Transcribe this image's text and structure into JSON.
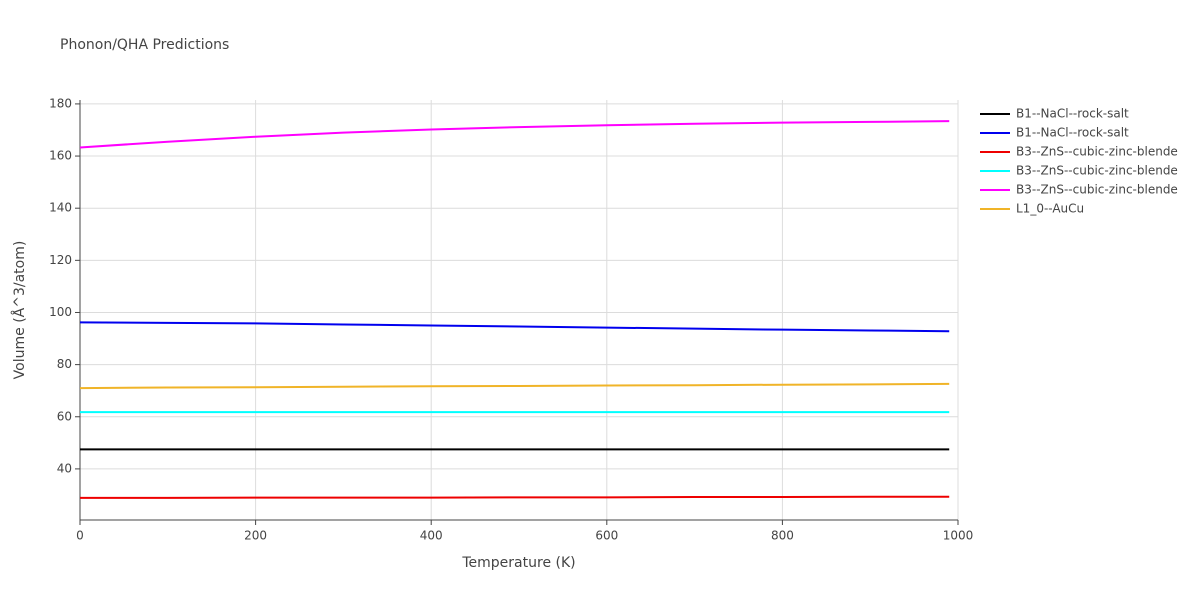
{
  "chart_data": {
    "type": "line",
    "title": "Phonon/QHA Predictions",
    "x_label": "Temperature (K)",
    "y_label": "Volume (Å^3/atom)",
    "x": [
      0,
      100,
      200,
      300,
      400,
      500,
      600,
      700,
      800,
      900,
      990
    ],
    "series": [
      {
        "name": "B1--NaCl--rock-salt",
        "color": "#000000",
        "values": [
          47.5,
          47.5,
          47.5,
          47.5,
          47.5,
          47.5,
          47.5,
          47.5,
          47.5,
          47.5,
          47.5
        ]
      },
      {
        "name": "B1--NaCl--rock-salt",
        "color": "#0000ee",
        "values": [
          96.2,
          96.0,
          95.8,
          95.4,
          95.0,
          94.6,
          94.2,
          93.8,
          93.4,
          93.1,
          92.8
        ]
      },
      {
        "name": "B3--ZnS--cubic-zinc-blende",
        "color": "#ee0000",
        "values": [
          28.9,
          28.9,
          29.0,
          29.0,
          29.0,
          29.1,
          29.1,
          29.2,
          29.2,
          29.3,
          29.3
        ]
      },
      {
        "name": "B3--ZnS--cubic-zinc-blende",
        "color": "#00ffff",
        "values": [
          61.8,
          61.8,
          61.8,
          61.8,
          61.8,
          61.8,
          61.8,
          61.8,
          61.8,
          61.8,
          61.8
        ]
      },
      {
        "name": "B3--ZnS--cubic-zinc-blende",
        "color": "#ff00ff",
        "values": [
          163.3,
          165.5,
          167.4,
          169.0,
          170.2,
          171.1,
          171.8,
          172.4,
          172.8,
          173.1,
          173.4
        ]
      },
      {
        "name": "L1_0--AuCu",
        "color": "#f0b428",
        "values": [
          71.0,
          71.2,
          71.3,
          71.5,
          71.7,
          71.8,
          72.0,
          72.1,
          72.3,
          72.4,
          72.6
        ]
      }
    ],
    "xlim": [
      0,
      1000
    ],
    "xticks": [
      0,
      200,
      400,
      600,
      800,
      1000
    ],
    "ylim": [
      20.4,
      181.5
    ],
    "yticks": [
      40,
      60,
      80,
      100,
      120,
      140,
      160,
      180
    ],
    "grid": true,
    "legend": "right"
  }
}
